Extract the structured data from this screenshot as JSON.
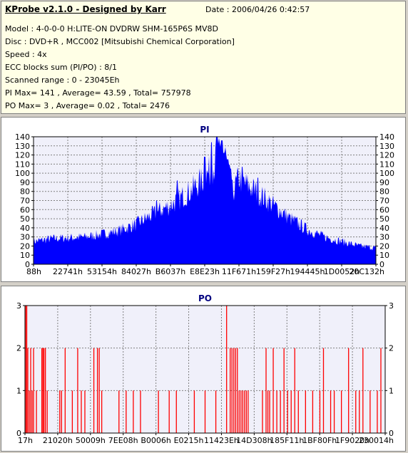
{
  "info": {
    "title": "KProbe v2.1.0 - Designed by Karr",
    "date": "Date : 2006/04/26 0:42:57",
    "lines": [
      "Model : 4-0-0-0 H:LITE-ON DVDRW SHM-165P6S MV8D",
      "Disc : DVD+R , MCC002 [Mitsubishi Chemical Corporation]",
      "Speed : 4x",
      "ECC blocks sum (PI/PO) : 8/1",
      "Scanned range : 0 - 23045Eh",
      "PI Max= 141 , Average= 43.59 , Total= 757978",
      "PO Max= 3 , Average= 0.02 , Total= 2476"
    ]
  },
  "colors": {
    "pi": "#0000ff",
    "po": "#ff0000",
    "grid": "#808080",
    "plot_bg": "#f0f0fa"
  },
  "chart_data": [
    {
      "type": "area",
      "title": "PI",
      "xlabel": "",
      "ylabel": "",
      "x_tick_labels": [
        "88h",
        "22741h",
        "53154h",
        "84027h",
        "B6037h",
        "E8E23h",
        "11F671h",
        "159F27h",
        "194445h",
        "1D0052h",
        "20C132h"
      ],
      "y_ticks": [
        0,
        10,
        20,
        30,
        40,
        50,
        60,
        70,
        80,
        90,
        100,
        110,
        120,
        130,
        140
      ],
      "ylim": [
        0,
        140
      ],
      "grid": true,
      "profile_x": [
        0.0,
        0.05,
        0.1,
        0.15,
        0.2,
        0.25,
        0.3,
        0.35,
        0.4,
        0.45,
        0.5,
        0.53,
        0.55,
        0.56,
        0.58,
        0.6,
        0.62,
        0.65,
        0.7,
        0.75,
        0.8,
        0.85,
        0.9,
        0.95,
        1.0
      ],
      "profile_y": [
        25,
        28,
        29,
        30,
        33,
        37,
        44,
        55,
        65,
        78,
        95,
        110,
        125,
        120,
        78,
        95,
        88,
        80,
        65,
        50,
        38,
        30,
        25,
        20,
        18
      ],
      "peaks": [
        {
          "x": 0.535,
          "y": 141
        },
        {
          "x": 0.52,
          "y": 134
        },
        {
          "x": 0.55,
          "y": 136
        },
        {
          "x": 0.5,
          "y": 118
        },
        {
          "x": 0.61,
          "y": 107
        },
        {
          "x": 0.575,
          "y": 105
        },
        {
          "x": 0.655,
          "y": 95
        },
        {
          "x": 0.36,
          "y": 70
        },
        {
          "x": 0.42,
          "y": 92
        }
      ]
    },
    {
      "type": "bar",
      "title": "PO",
      "xlabel": "",
      "ylabel": "",
      "x_tick_labels": [
        "17h",
        "21020h",
        "50009h",
        "7EE08h",
        "B0006h",
        "E0215h",
        "11423Eh",
        "14D308h",
        "185F11h",
        "1BF80Fh",
        "1F9020h",
        "230014h"
      ],
      "y_ticks": [
        0,
        1,
        2,
        3
      ],
      "ylim": [
        0,
        3
      ],
      "grid": true,
      "spikes": [
        {
          "x": 0.0,
          "y": 3
        },
        {
          "x": 0.003,
          "y": 3
        },
        {
          "x": 0.006,
          "y": 2
        },
        {
          "x": 0.01,
          "y": 1
        },
        {
          "x": 0.014,
          "y": 2
        },
        {
          "x": 0.018,
          "y": 1
        },
        {
          "x": 0.022,
          "y": 2
        },
        {
          "x": 0.03,
          "y": 1
        },
        {
          "x": 0.045,
          "y": 2
        },
        {
          "x": 0.048,
          "y": 2
        },
        {
          "x": 0.051,
          "y": 2
        },
        {
          "x": 0.055,
          "y": 2
        },
        {
          "x": 0.06,
          "y": 1
        },
        {
          "x": 0.095,
          "y": 1
        },
        {
          "x": 0.1,
          "y": 1
        },
        {
          "x": 0.11,
          "y": 2
        },
        {
          "x": 0.13,
          "y": 1
        },
        {
          "x": 0.145,
          "y": 2
        },
        {
          "x": 0.155,
          "y": 1
        },
        {
          "x": 0.165,
          "y": 1
        },
        {
          "x": 0.19,
          "y": 2
        },
        {
          "x": 0.2,
          "y": 2
        },
        {
          "x": 0.205,
          "y": 2
        },
        {
          "x": 0.212,
          "y": 1
        },
        {
          "x": 0.26,
          "y": 1
        },
        {
          "x": 0.28,
          "y": 1
        },
        {
          "x": 0.3,
          "y": 1
        },
        {
          "x": 0.32,
          "y": 1
        },
        {
          "x": 0.37,
          "y": 1
        },
        {
          "x": 0.4,
          "y": 1
        },
        {
          "x": 0.42,
          "y": 1
        },
        {
          "x": 0.47,
          "y": 1
        },
        {
          "x": 0.5,
          "y": 1
        },
        {
          "x": 0.53,
          "y": 1
        },
        {
          "x": 0.56,
          "y": 3
        },
        {
          "x": 0.57,
          "y": 2
        },
        {
          "x": 0.575,
          "y": 2
        },
        {
          "x": 0.58,
          "y": 2
        },
        {
          "x": 0.585,
          "y": 2
        },
        {
          "x": 0.59,
          "y": 2
        },
        {
          "x": 0.595,
          "y": 1
        },
        {
          "x": 0.6,
          "y": 1
        },
        {
          "x": 0.605,
          "y": 1
        },
        {
          "x": 0.61,
          "y": 1
        },
        {
          "x": 0.615,
          "y": 1
        },
        {
          "x": 0.62,
          "y": 1
        },
        {
          "x": 0.66,
          "y": 1
        },
        {
          "x": 0.67,
          "y": 2
        },
        {
          "x": 0.675,
          "y": 1
        },
        {
          "x": 0.68,
          "y": 1
        },
        {
          "x": 0.69,
          "y": 2
        },
        {
          "x": 0.7,
          "y": 1
        },
        {
          "x": 0.71,
          "y": 1
        },
        {
          "x": 0.72,
          "y": 2
        },
        {
          "x": 0.73,
          "y": 1
        },
        {
          "x": 0.74,
          "y": 1
        },
        {
          "x": 0.75,
          "y": 2
        },
        {
          "x": 0.76,
          "y": 1
        },
        {
          "x": 0.78,
          "y": 1
        },
        {
          "x": 0.8,
          "y": 1
        },
        {
          "x": 0.82,
          "y": 1
        },
        {
          "x": 0.83,
          "y": 2
        },
        {
          "x": 0.85,
          "y": 1
        },
        {
          "x": 0.86,
          "y": 1
        },
        {
          "x": 0.88,
          "y": 1
        },
        {
          "x": 0.9,
          "y": 2
        },
        {
          "x": 0.92,
          "y": 1
        },
        {
          "x": 0.93,
          "y": 1
        },
        {
          "x": 0.94,
          "y": 2
        },
        {
          "x": 0.96,
          "y": 1
        },
        {
          "x": 0.98,
          "y": 1
        },
        {
          "x": 0.99,
          "y": 2
        }
      ]
    }
  ]
}
